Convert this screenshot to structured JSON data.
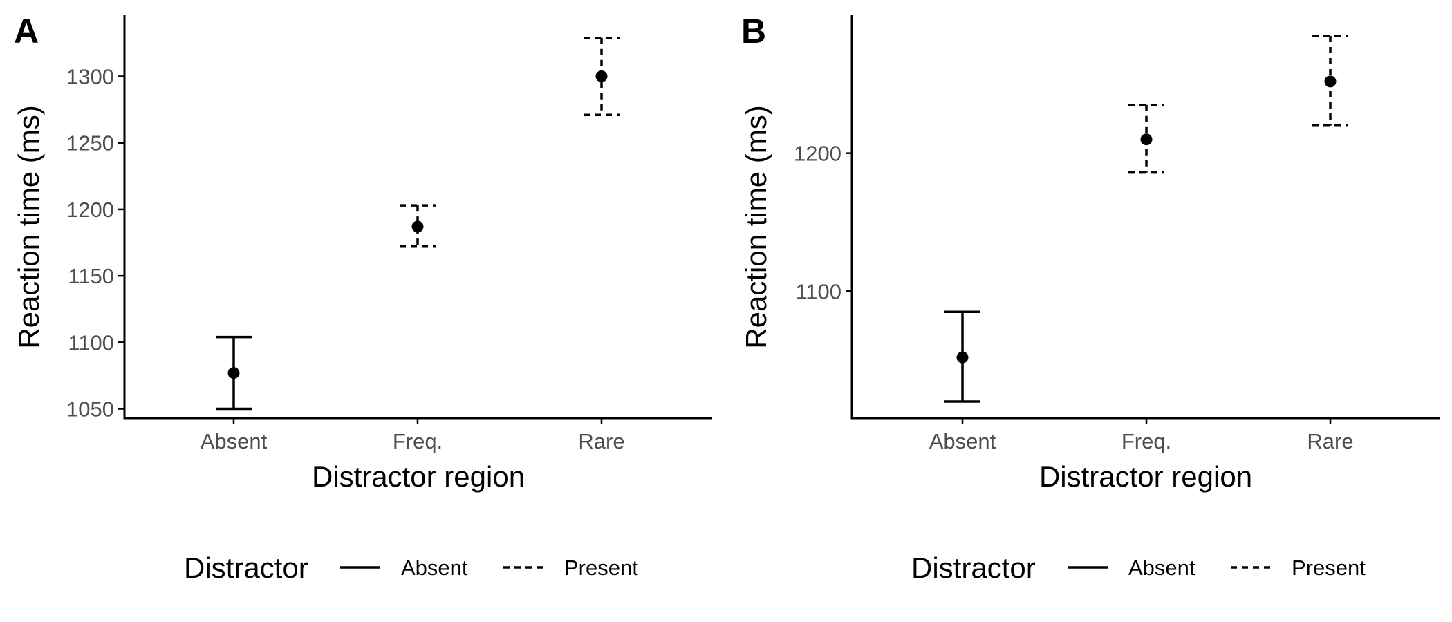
{
  "chart_data": [
    {
      "panel": "A",
      "type": "scatter",
      "xlabel": "Distractor region",
      "ylabel": "Reaction time (ms)",
      "categories": [
        "Absent",
        "Freq.",
        "Rare"
      ],
      "yticks": [
        1050,
        1100,
        1150,
        1200,
        1250,
        1300
      ],
      "ylim": [
        1043,
        1346
      ],
      "points": [
        {
          "x": "Absent",
          "y": 1077,
          "lower": 1050,
          "upper": 1104,
          "distractor": "Absent"
        },
        {
          "x": "Freq.",
          "y": 1187,
          "lower": 1172,
          "upper": 1203,
          "distractor": "Present"
        },
        {
          "x": "Rare",
          "y": 1300,
          "lower": 1271,
          "upper": 1329,
          "distractor": "Present"
        }
      ],
      "legend": {
        "title": "Distractor",
        "items": [
          {
            "label": "Absent",
            "linetype": "solid"
          },
          {
            "label": "Present",
            "linetype": "dashed"
          }
        ],
        "position": "bottom"
      }
    },
    {
      "panel": "B",
      "type": "scatter",
      "xlabel": "Distractor region",
      "ylabel": "Reaction time (ms)",
      "categories": [
        "Absent",
        "Freq.",
        "Rare"
      ],
      "yticks": [
        1100,
        1200
      ],
      "ylim": [
        1008,
        1300
      ],
      "points": [
        {
          "x": "Absent",
          "y": 1052,
          "lower": 1020,
          "upper": 1085,
          "distractor": "Absent"
        },
        {
          "x": "Freq.",
          "y": 1210,
          "lower": 1186,
          "upper": 1235,
          "distractor": "Present"
        },
        {
          "x": "Rare",
          "y": 1252,
          "lower": 1220,
          "upper": 1285,
          "distractor": "Present"
        }
      ],
      "legend": {
        "title": "Distractor",
        "items": [
          {
            "label": "Absent",
            "linetype": "solid"
          },
          {
            "label": "Present",
            "linetype": "dashed"
          }
        ],
        "position": "bottom"
      }
    }
  ]
}
